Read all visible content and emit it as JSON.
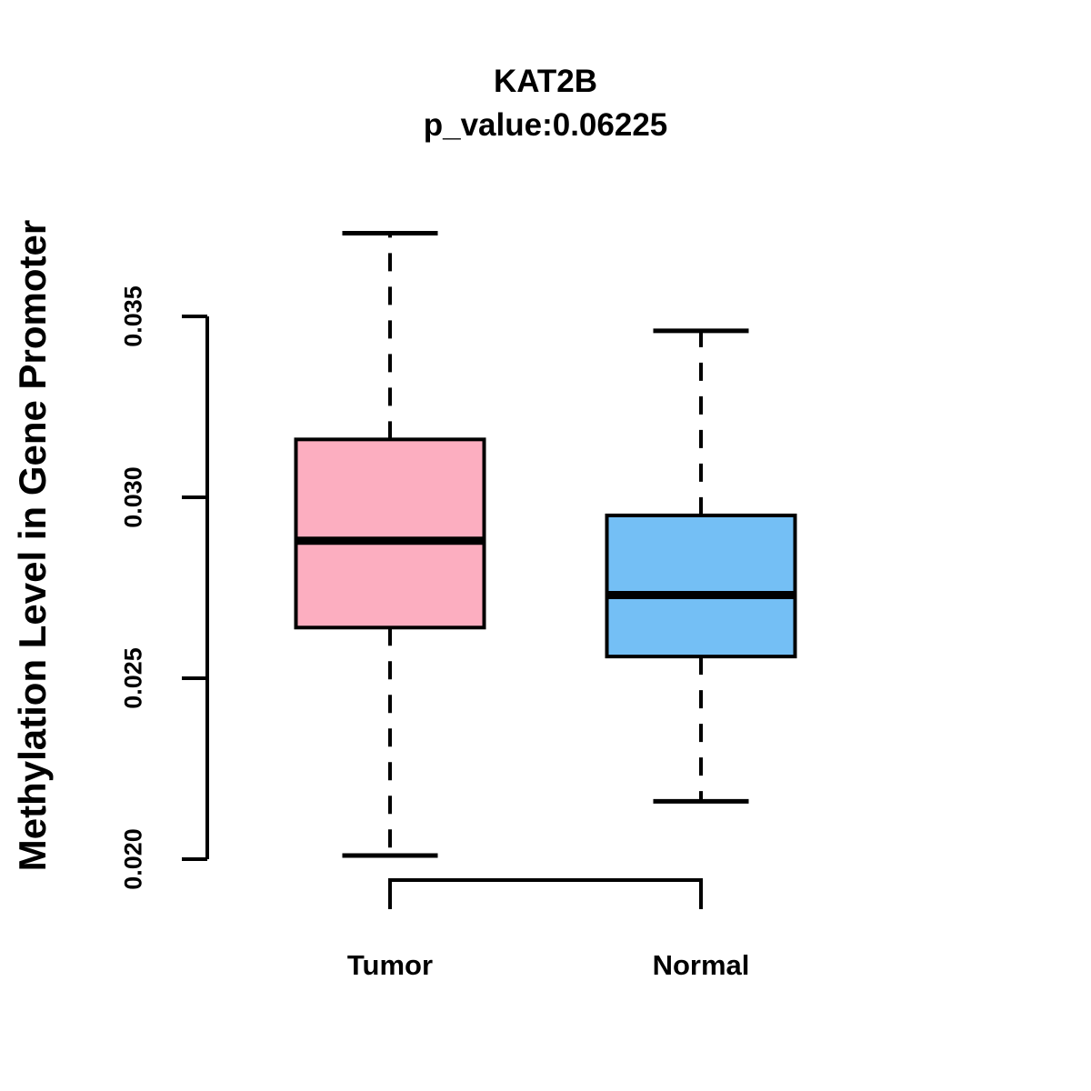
{
  "chart_data": {
    "type": "boxplot",
    "title": "KAT2B",
    "subtitle": "p_value:0.06225",
    "ylabel": "Methylation Level in Gene Promoter",
    "xlabel": "",
    "categories": [
      "Tumor",
      "Normal"
    ],
    "yticks": [
      0.02,
      0.025,
      0.03,
      0.035
    ],
    "ytick_labels": [
      "0.020",
      "0.025",
      "0.030",
      "0.035"
    ],
    "ylim": [
      0.0185,
      0.0378
    ],
    "grid": false,
    "legend": "none",
    "line_color": "#000000",
    "background": "#FFFFFF",
    "series": [
      {
        "name": "Tumor",
        "color": "#FCAEC0",
        "whisker_low": 0.0201,
        "q1": 0.0264,
        "median": 0.0288,
        "q3": 0.0316,
        "whisker_high": 0.0373
      },
      {
        "name": "Normal",
        "color": "#74BFF5",
        "whisker_low": 0.0216,
        "q1": 0.0256,
        "median": 0.0273,
        "q3": 0.0295,
        "whisker_high": 0.0346
      }
    ]
  }
}
